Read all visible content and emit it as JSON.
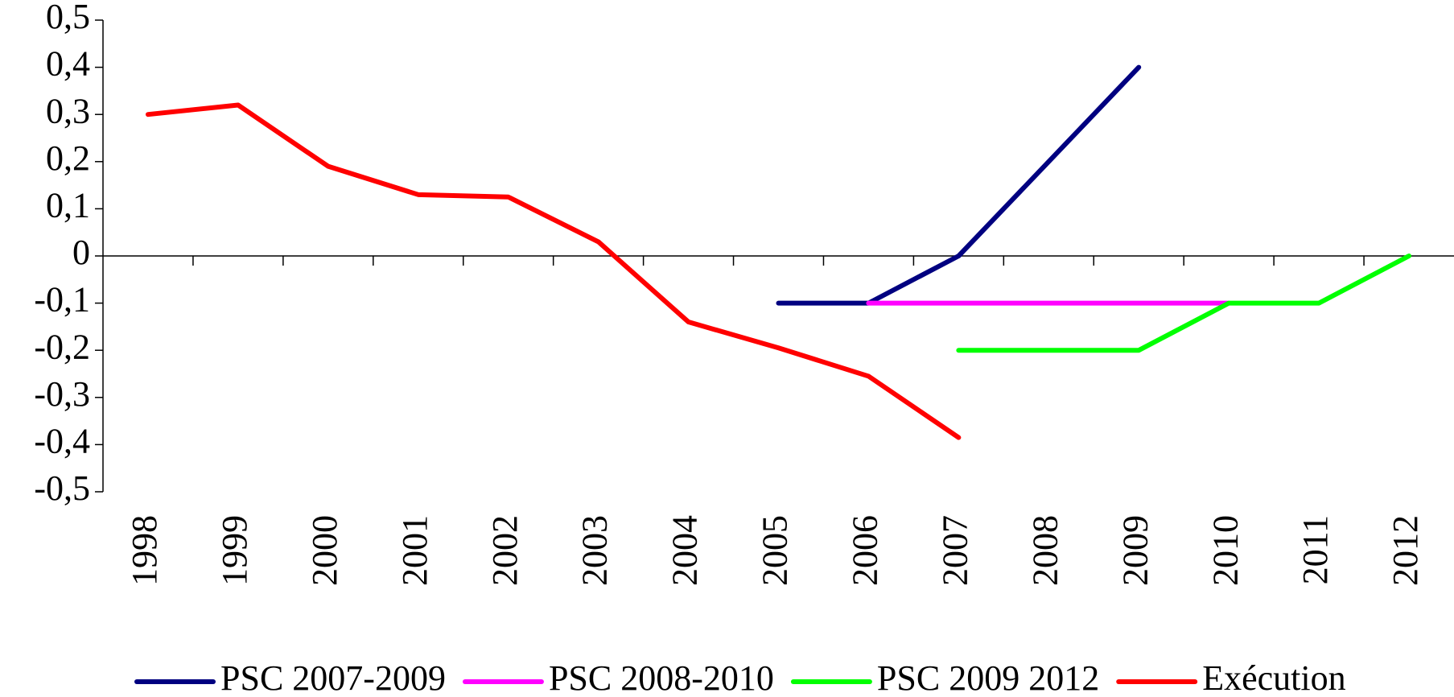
{
  "chart_data": {
    "type": "line",
    "categories": [
      "1998",
      "1999",
      "2000",
      "2001",
      "2002",
      "2003",
      "2004",
      "2005",
      "2006",
      "2007",
      "2008",
      "2009",
      "2010",
      "2011",
      "2012"
    ],
    "series": [
      {
        "name": "PSC 2007-2009",
        "color": "#000080",
        "values": [
          null,
          null,
          null,
          null,
          null,
          null,
          null,
          -0.1,
          -0.1,
          0,
          0.2,
          0.4,
          null,
          null,
          null
        ]
      },
      {
        "name": "PSC 2008-2010",
        "color": "#ff00ff",
        "values": [
          null,
          null,
          null,
          null,
          null,
          null,
          null,
          null,
          -0.1,
          -0.1,
          -0.1,
          -0.1,
          -0.1,
          null,
          null
        ]
      },
      {
        "name": "PSC 2009 2012",
        "color": "#00ff00",
        "values": [
          null,
          null,
          null,
          null,
          null,
          null,
          null,
          null,
          null,
          -0.2,
          -0.2,
          -0.2,
          -0.1,
          -0.1,
          0
        ]
      },
      {
        "name": "Exécution",
        "color": "#ff0000",
        "values": [
          0.3,
          0.32,
          0.19,
          0.13,
          0.125,
          0.03,
          -0.14,
          -0.195,
          -0.255,
          -0.385,
          null,
          null,
          null,
          null,
          null
        ]
      }
    ],
    "ylim": [
      -0.5,
      0.5
    ],
    "yticks": [
      {
        "value": -0.5,
        "label": "-0,5"
      },
      {
        "value": -0.4,
        "label": "-0,4"
      },
      {
        "value": -0.3,
        "label": "-0,3"
      },
      {
        "value": -0.2,
        "label": "-0,2"
      },
      {
        "value": -0.1,
        "label": "-0,1"
      },
      0,
      {
        "value": 0.1,
        "label": "0,1"
      },
      {
        "value": 0.2,
        "label": "0,2"
      },
      {
        "value": 0.3,
        "label": "0,3"
      },
      {
        "value": 0.4,
        "label": "0,4"
      },
      {
        "value": 0.5,
        "label": "0,5"
      }
    ],
    "legend": "bottom"
  }
}
